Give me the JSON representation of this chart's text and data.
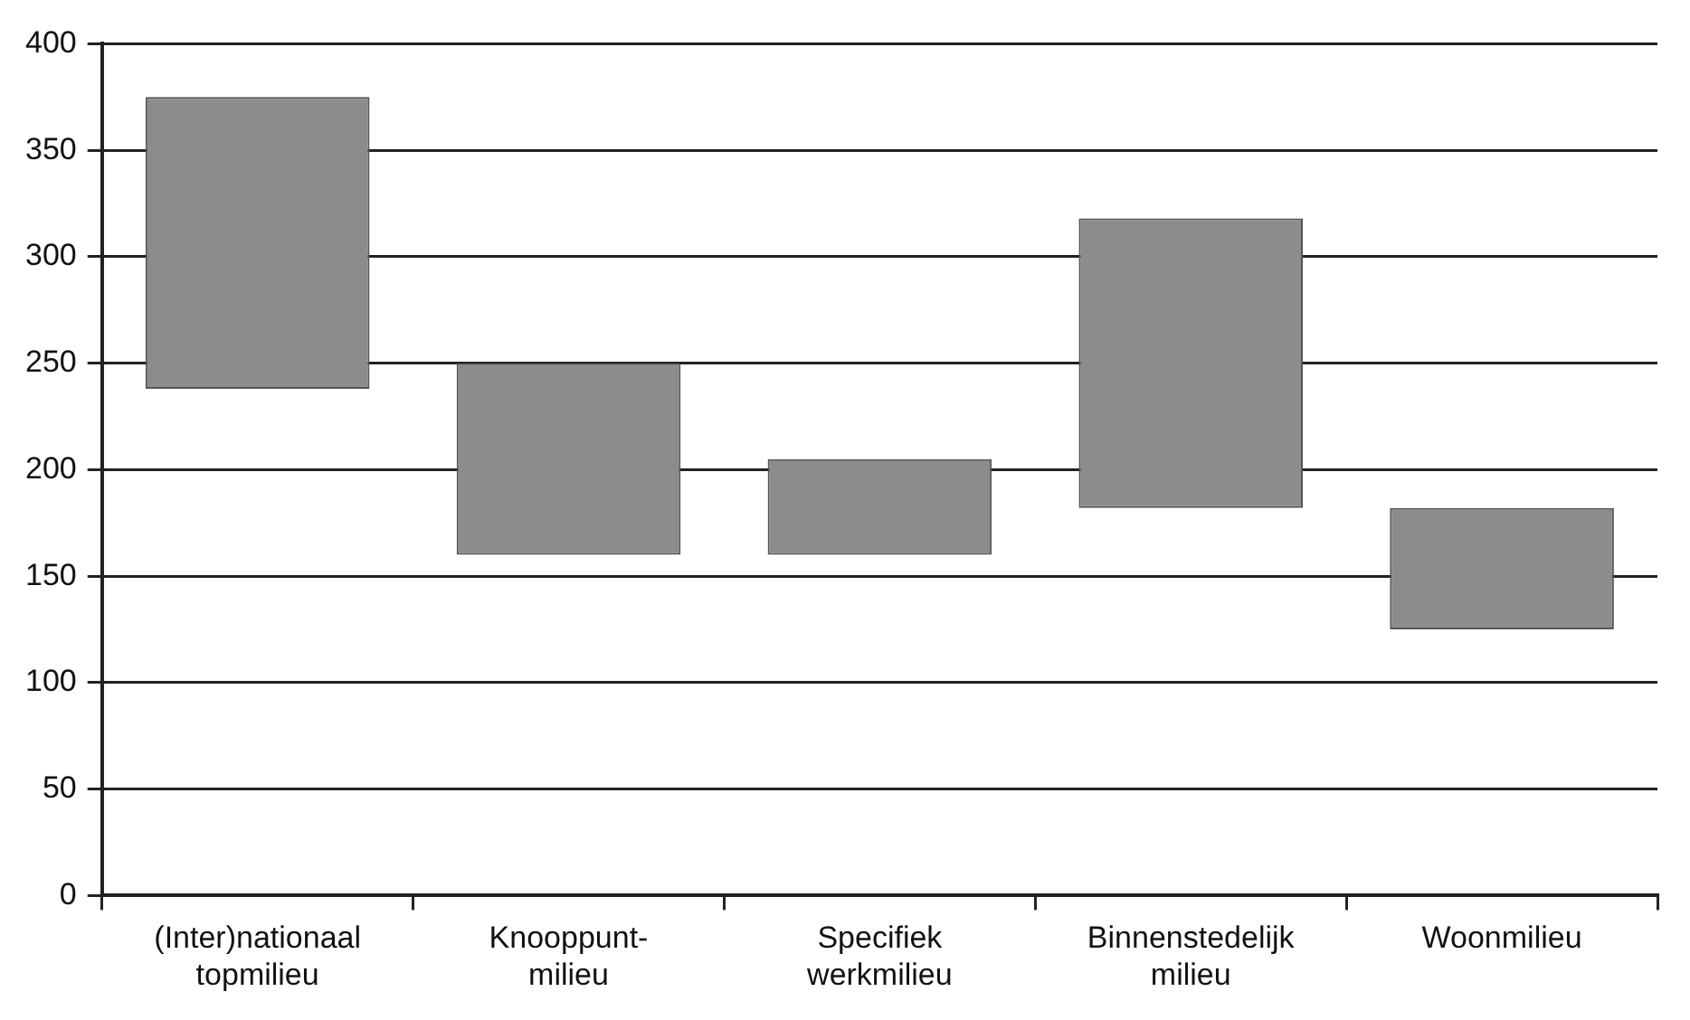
{
  "chart_data": {
    "type": "bar",
    "categories": [
      "(Inter)nationaal\ntopmilieu",
      "Knooppunt-\nmilieu",
      "Specifiek\nwerkmilieu",
      "Binnenstedelijk\nmilieu",
      "Woonmilieu"
    ],
    "values": [
      137,
      90,
      45,
      136,
      57
    ],
    "base": [
      238,
      160,
      160,
      182,
      125
    ],
    "color": "#8c8c8c",
    "ylim": [
      0,
      400
    ],
    "yticks": [
      0,
      50,
      100,
      150,
      200,
      250,
      300,
      350,
      400
    ],
    "grid": "y"
  }
}
